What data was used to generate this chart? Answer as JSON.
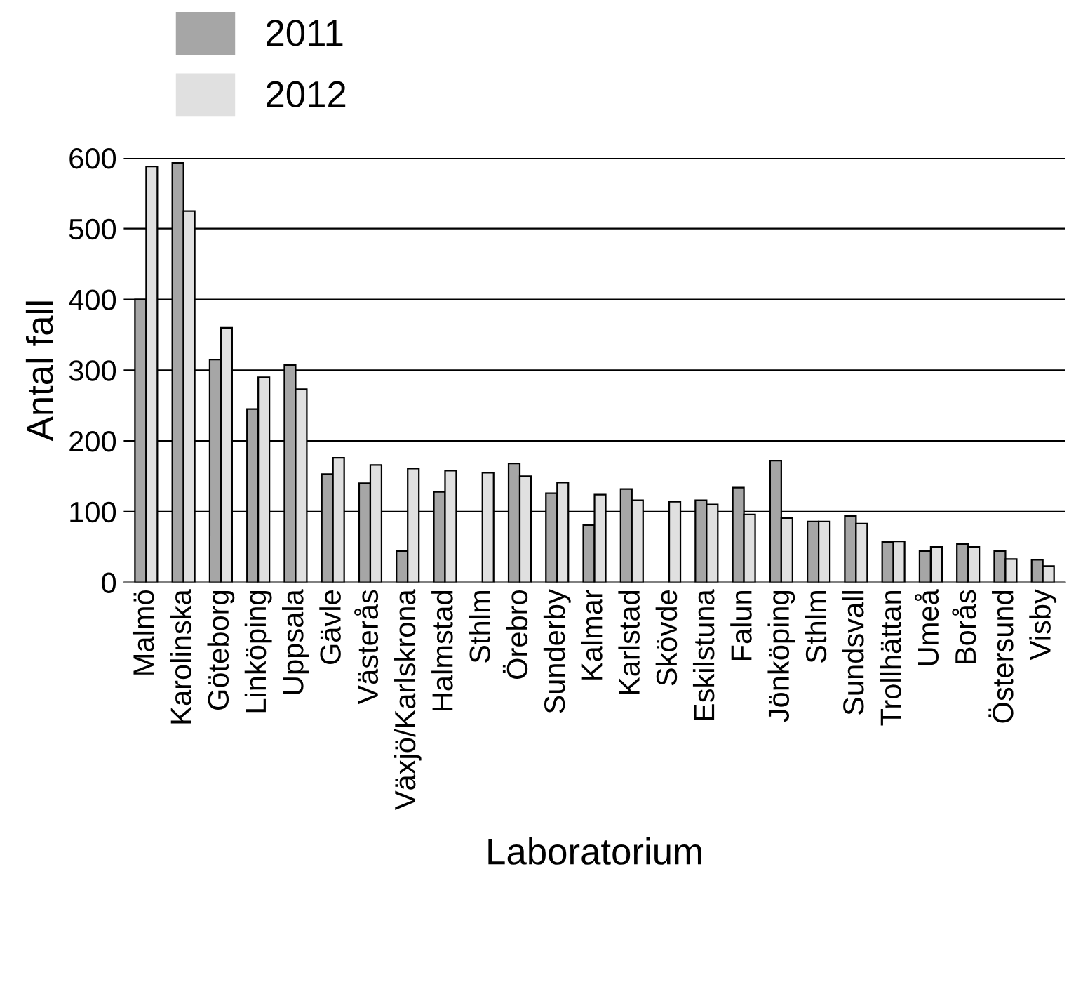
{
  "chart_data": {
    "type": "bar",
    "xlabel": "Laboratorium",
    "ylabel": "Antal fall",
    "categories": [
      "Malmö",
      "Karolinska",
      "Göteborg",
      "Linköping",
      "Uppsala",
      "Gävle",
      "Västerås",
      "Växjö/Karlskrona",
      "Halmstad",
      "Sthlm",
      "Örebro",
      "Sunderby",
      "Kalmar",
      "Karlstad",
      "Skövde",
      "Eskilstuna",
      "Falun",
      "Jönköping",
      "Sthlm",
      "Sundsvall",
      "Trollhättan",
      "Umeå",
      "Borås",
      "Östersund",
      "Visby"
    ],
    "series": [
      {
        "name": "2011",
        "color": "#a6a6a6",
        "values": [
          400,
          593,
          315,
          245,
          307,
          153,
          140,
          44,
          128,
          null,
          168,
          126,
          81,
          132,
          null,
          116,
          134,
          172,
          86,
          94,
          57,
          44,
          54,
          44,
          32
        ]
      },
      {
        "name": "2012",
        "color": "#e0e0e0",
        "values": [
          588,
          525,
          360,
          290,
          273,
          176,
          166,
          161,
          158,
          155,
          150,
          141,
          124,
          116,
          114,
          110,
          96,
          91,
          86,
          83,
          58,
          50,
          50,
          33,
          23
        ]
      }
    ],
    "ylim": [
      0,
      600
    ],
    "yticks": [
      0,
      100,
      200,
      300,
      400,
      500,
      600
    ],
    "grid": "y",
    "legend": "top left"
  }
}
